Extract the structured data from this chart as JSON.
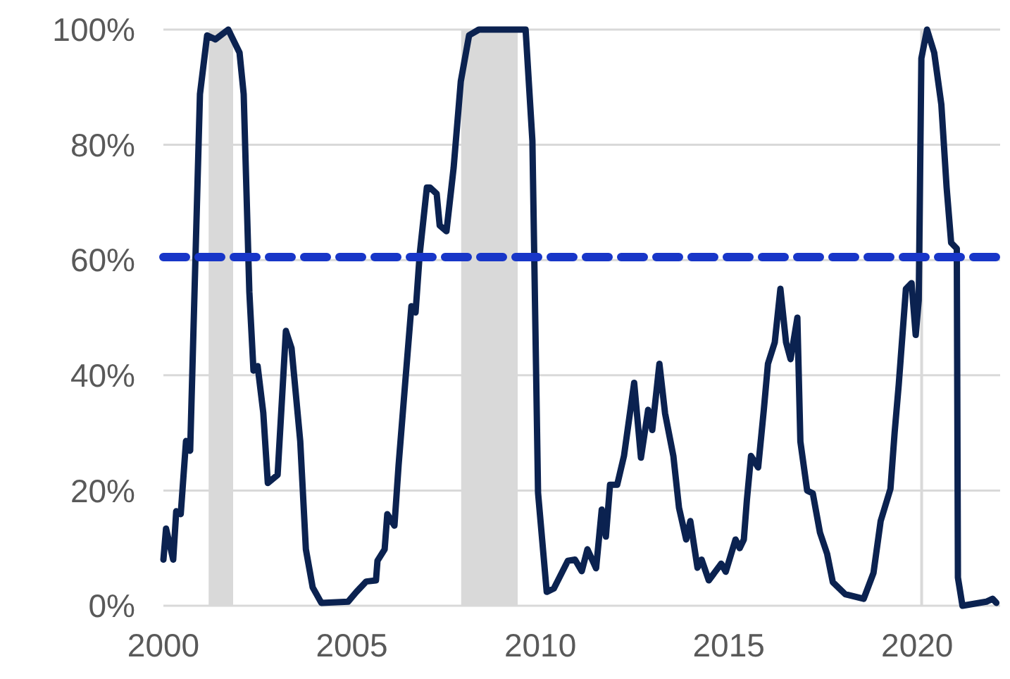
{
  "chart_data": {
    "type": "line",
    "xlim": [
      2000,
      2022.2
    ],
    "xticks": [
      2000,
      2005,
      2010,
      2015,
      2020
    ],
    "ylim": [
      0,
      100
    ],
    "yticks": [
      {
        "value": 0,
        "label": "0%"
      },
      {
        "value": 20,
        "label": "20%"
      },
      {
        "value": 40,
        "label": "40%"
      },
      {
        "value": 60,
        "label": "60%"
      },
      {
        "value": 80,
        "label": "80%"
      },
      {
        "value": 100,
        "label": "100%"
      }
    ],
    "grid": "y",
    "line_style": "solid",
    "bands": [
      {
        "axis": "x",
        "from": 2001.2,
        "to": 2001.85,
        "color": "#d9d9d9"
      },
      {
        "axis": "x",
        "from": 2007.9,
        "to": 2009.4,
        "color": "#d9d9d9"
      },
      {
        "axis": "x",
        "from": 2020.08,
        "to": 2020.15,
        "color": "#d9d9d9"
      }
    ],
    "ref_lines": [
      {
        "axis": "y",
        "value": 60.5,
        "color": "#1836c8",
        "line_style": "dashed"
      }
    ],
    "series": [
      {
        "color": "#0b2250",
        "x": [
          2000,
          2000.07,
          2000.26,
          2000.34,
          2000.46,
          2000.6,
          2000.71,
          2000.97,
          2001.16,
          2001.38,
          2001.72,
          2002.02,
          2002.13,
          2002.28,
          2002.39,
          2002.5,
          2002.65,
          2002.77,
          2003.03,
          2003.25,
          2003.4,
          2003.63,
          2003.78,
          2003.96,
          2004.19,
          2004.9,
          2005.12,
          2005.38,
          2005.64,
          2005.68,
          2005.87,
          2005.94,
          2006.13,
          2006.24,
          2006.43,
          2006.58,
          2006.69,
          2006.8,
          2006.99,
          2007.07,
          2007.25,
          2007.33,
          2007.51,
          2007.7,
          2007.89,
          2008.11,
          2008.37,
          2009.61,
          2009.79,
          2009.94,
          2010.17,
          2010.36,
          2010.73,
          2010.92,
          2011.1,
          2011.25,
          2011.48,
          2011.63,
          2011.74,
          2011.85,
          2012.04,
          2012.22,
          2012.49,
          2012.67,
          2012.86,
          2012.97,
          2013.16,
          2013.31,
          2013.53,
          2013.68,
          2013.87,
          2013.98,
          2014.17,
          2014.28,
          2014.47,
          2014.8,
          2014.92,
          2015.18,
          2015.29,
          2015.4,
          2015.48,
          2015.59,
          2015.78,
          2015.93,
          2016.04,
          2016.22,
          2016.37,
          2016.52,
          2016.64,
          2016.82,
          2016.9,
          2017.08,
          2017.23,
          2017.42,
          2017.61,
          2017.76,
          2018.09,
          2018.58,
          2018.84,
          2019.03,
          2019.29,
          2019.4,
          2019.51,
          2019.7,
          2019.85,
          2019.96,
          2020.04,
          2020.11,
          2020.26,
          2020.45,
          2020.64,
          2020.78,
          2020.9,
          2021.05,
          2021.08,
          2021.2,
          2021.83,
          2022,
          2022.1
        ],
        "values": [
          8,
          13.4,
          8,
          16.4,
          15.9,
          28.6,
          26.9,
          88.8,
          99,
          98.3,
          100,
          96,
          88.8,
          54.5,
          40.8,
          41.6,
          33.5,
          21.3,
          22.7,
          47.7,
          44.7,
          28.6,
          9.8,
          3.2,
          0.5,
          0.7,
          2.4,
          4.2,
          4.4,
          7.8,
          9.8,
          15.9,
          13.9,
          24.4,
          39.9,
          52,
          50.9,
          61,
          72.6,
          72.6,
          71.5,
          66,
          65,
          76,
          91,
          99,
          100,
          100,
          80.7,
          19.6,
          2.4,
          3,
          7.8,
          8,
          6,
          9.8,
          6.5,
          16.7,
          12,
          21,
          21,
          26,
          38.7,
          25.7,
          34,
          30.5,
          42,
          33.4,
          26,
          17,
          11.5,
          14.7,
          6.6,
          8,
          4.4,
          7.3,
          5.9,
          11.5,
          10,
          11.5,
          18.3,
          26,
          24,
          34,
          42,
          45.7,
          55,
          45.7,
          42.8,
          50,
          28.5,
          20,
          19.5,
          12.7,
          9,
          4.1,
          2,
          1.2,
          5.7,
          14.7,
          20.3,
          30,
          38.4,
          55,
          56,
          47,
          53,
          95,
          100,
          96,
          87,
          72.6,
          63,
          62,
          4.9,
          0,
          0.7,
          1.2,
          0.5
        ]
      }
    ]
  }
}
